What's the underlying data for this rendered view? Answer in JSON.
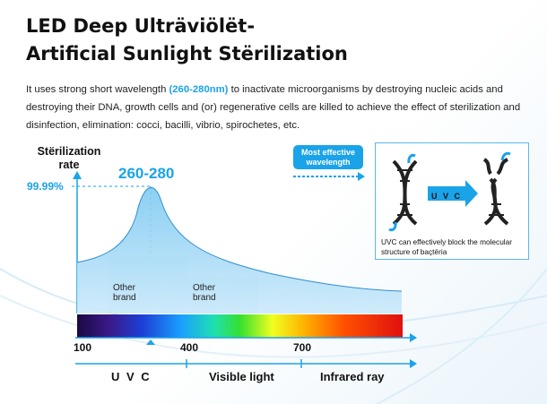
{
  "title": {
    "line1": "LED Deep Ulträviölët-",
    "line2": "Artificial Sunlight Stërilization"
  },
  "description": {
    "before": "It uses strong short wavelength ",
    "highlight": "(260-280nm)",
    "after": " to inactivate microorganisms by destroying nucleic acids and destroying their DNA, growth cells and (or) regenerative cells are killed to achieve the effect of sterilization and disinfection, elimination: cocci, bacilli, vibrio, spirochetes, etc."
  },
  "chart": {
    "ylabel_line1": "Stërilization",
    "ylabel_line2": "rate",
    "ytick": "99.99%",
    "peak_label": "260-280",
    "brand_left": [
      "Other",
      "brand"
    ],
    "brand_right": [
      "Other",
      "brand"
    ],
    "xticks": [
      "100",
      "400",
      "700"
    ],
    "bands": [
      "U V C",
      "Visible light",
      "Infrared ray"
    ]
  },
  "badge": {
    "line1": "Most effective",
    "line2": "wavelength"
  },
  "dna_box": {
    "arrow_text": "U V C",
    "caption": "UVC can effectively block the molecular structure of baçtëria"
  },
  "colors": {
    "accent": "#1aa3e8",
    "curve_fill": "#8fd3f4"
  }
}
